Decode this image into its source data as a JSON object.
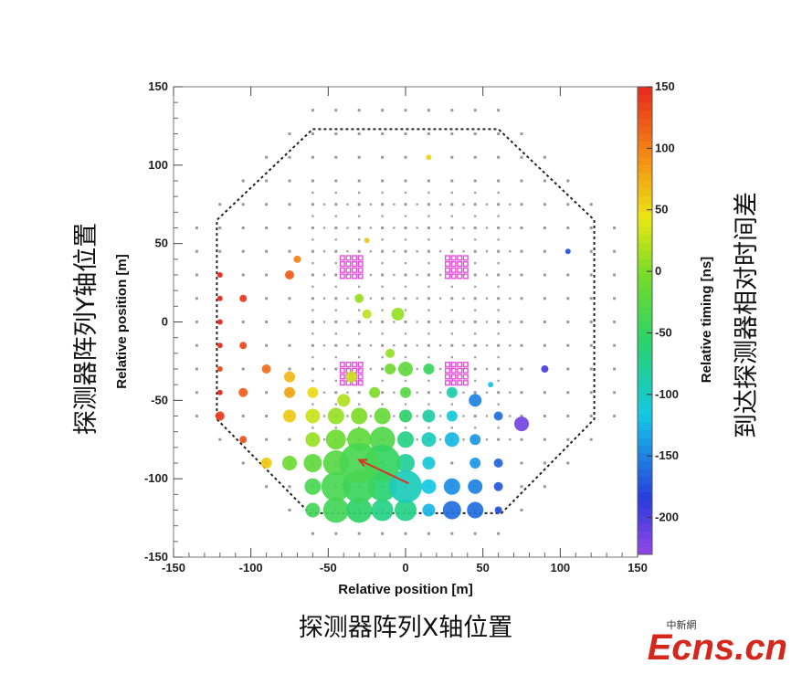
{
  "chart_data": {
    "type": "scatter",
    "xlabel": "Relative position [m]",
    "ylabel": "Relative position [m]",
    "xlim": [
      -150,
      150
    ],
    "ylim": [
      -150,
      150
    ],
    "x_ticks": [
      -150,
      -100,
      -50,
      0,
      50,
      100,
      150
    ],
    "y_ticks": [
      -150,
      -100,
      -50,
      0,
      50,
      100,
      150
    ],
    "colorbar": {
      "label": "Relative timing [ns]",
      "range": [
        -230,
        150
      ],
      "ticks": [
        150,
        100,
        50,
        0,
        -50,
        -100,
        -150,
        -200
      ]
    },
    "array_boundary": [
      [
        -60,
        123
      ],
      [
        60,
        123
      ],
      [
        122,
        65
      ],
      [
        122,
        -62
      ],
      [
        62,
        -122
      ],
      [
        -62,
        -122
      ],
      [
        -122,
        -62
      ],
      [
        -122,
        65
      ]
    ],
    "core_direction_arrow": {
      "from": [
        2,
        -103
      ],
      "to": [
        -30,
        -88
      ],
      "color": "#d9342b"
    },
    "triggered_detectors": [
      {
        "x": -120,
        "y": -60,
        "t": 140,
        "size": 5
      },
      {
        "x": -120,
        "y": -45,
        "t": 150,
        "size": 3
      },
      {
        "x": -120,
        "y": -30,
        "t": 130,
        "size": 3
      },
      {
        "x": -120,
        "y": -15,
        "t": 145,
        "size": 3
      },
      {
        "x": -120,
        "y": 0,
        "t": 150,
        "size": 3
      },
      {
        "x": -120,
        "y": 15,
        "t": 150,
        "size": 3
      },
      {
        "x": -120,
        "y": 30,
        "t": 150,
        "size": 3
      },
      {
        "x": -105,
        "y": -75,
        "t": 125,
        "size": 4
      },
      {
        "x": -105,
        "y": -45,
        "t": 120,
        "size": 5
      },
      {
        "x": -105,
        "y": -15,
        "t": 130,
        "size": 4
      },
      {
        "x": -105,
        "y": 15,
        "t": 140,
        "size": 4
      },
      {
        "x": -90,
        "y": -90,
        "t": 60,
        "size": 6
      },
      {
        "x": -90,
        "y": -30,
        "t": 110,
        "size": 5
      },
      {
        "x": -75,
        "y": 30,
        "t": 120,
        "size": 5
      },
      {
        "x": -75,
        "y": -60,
        "t": 60,
        "size": 7
      },
      {
        "x": -75,
        "y": -45,
        "t": 80,
        "size": 6
      },
      {
        "x": -75,
        "y": -35,
        "t": 70,
        "size": 6
      },
      {
        "x": -75,
        "y": -90,
        "t": -10,
        "size": 8
      },
      {
        "x": -70,
        "y": 40,
        "t": 100,
        "size": 4
      },
      {
        "x": -60,
        "y": -60,
        "t": 30,
        "size": 8
      },
      {
        "x": -60,
        "y": -75,
        "t": 10,
        "size": 8
      },
      {
        "x": -60,
        "y": -90,
        "t": -20,
        "size": 10
      },
      {
        "x": -60,
        "y": -105,
        "t": -35,
        "size": 9
      },
      {
        "x": -60,
        "y": -120,
        "t": -40,
        "size": 8
      },
      {
        "x": -60,
        "y": -45,
        "t": 50,
        "size": 6
      },
      {
        "x": -45,
        "y": -60,
        "t": 10,
        "size": 9
      },
      {
        "x": -45,
        "y": -75,
        "t": -10,
        "size": 11
      },
      {
        "x": -45,
        "y": -90,
        "t": -25,
        "size": 14
      },
      {
        "x": -45,
        "y": -105,
        "t": -35,
        "size": 16
      },
      {
        "x": -45,
        "y": -120,
        "t": -40,
        "size": 14
      },
      {
        "x": -40,
        "y": -50,
        "t": 20,
        "size": 7
      },
      {
        "x": -35,
        "y": -35,
        "t": 30,
        "size": 6
      },
      {
        "x": -30,
        "y": -60,
        "t": 0,
        "size": 9
      },
      {
        "x": -30,
        "y": -75,
        "t": -20,
        "size": 13
      },
      {
        "x": -30,
        "y": -90,
        "t": -35,
        "size": 22
      },
      {
        "x": -30,
        "y": -105,
        "t": -45,
        "size": 18
      },
      {
        "x": -30,
        "y": -120,
        "t": -55,
        "size": 14
      },
      {
        "x": -20,
        "y": -45,
        "t": 0,
        "size": 6
      },
      {
        "x": -15,
        "y": -60,
        "t": -15,
        "size": 9
      },
      {
        "x": -15,
        "y": -75,
        "t": -30,
        "size": 14
      },
      {
        "x": -15,
        "y": -90,
        "t": -50,
        "size": 20
      },
      {
        "x": -15,
        "y": -105,
        "t": -60,
        "size": 16
      },
      {
        "x": -15,
        "y": -120,
        "t": -70,
        "size": 12
      },
      {
        "x": -10,
        "y": -20,
        "t": 10,
        "size": 5
      },
      {
        "x": -10,
        "y": -30,
        "t": -10,
        "size": 6
      },
      {
        "x": -5,
        "y": 5,
        "t": 10,
        "size": 7
      },
      {
        "x": 0,
        "y": -30,
        "t": -20,
        "size": 8
      },
      {
        "x": 0,
        "y": -45,
        "t": -25,
        "size": 6
      },
      {
        "x": 0,
        "y": -60,
        "t": -55,
        "size": 7
      },
      {
        "x": 0,
        "y": -75,
        "t": -70,
        "size": 9
      },
      {
        "x": 0,
        "y": -90,
        "t": -80,
        "size": 10
      },
      {
        "x": 0,
        "y": -105,
        "t": -95,
        "size": 18
      },
      {
        "x": 0,
        "y": -120,
        "t": -70,
        "size": 12
      },
      {
        "x": 15,
        "y": -30,
        "t": -45,
        "size": 6
      },
      {
        "x": 15,
        "y": -60,
        "t": -85,
        "size": 7
      },
      {
        "x": 15,
        "y": -75,
        "t": -95,
        "size": 8
      },
      {
        "x": 15,
        "y": -90,
        "t": -110,
        "size": 7
      },
      {
        "x": 15,
        "y": -105,
        "t": -115,
        "size": 8
      },
      {
        "x": 15,
        "y": -120,
        "t": -125,
        "size": 7
      },
      {
        "x": 30,
        "y": -45,
        "t": -90,
        "size": 6
      },
      {
        "x": 30,
        "y": -60,
        "t": -110,
        "size": 6
      },
      {
        "x": 30,
        "y": -75,
        "t": -125,
        "size": 8
      },
      {
        "x": 30,
        "y": -105,
        "t": -145,
        "size": 9
      },
      {
        "x": 30,
        "y": -120,
        "t": -160,
        "size": 10
      },
      {
        "x": 45,
        "y": -50,
        "t": -150,
        "size": 7
      },
      {
        "x": 45,
        "y": -75,
        "t": -140,
        "size": 6
      },
      {
        "x": 45,
        "y": -90,
        "t": -140,
        "size": 6
      },
      {
        "x": 45,
        "y": -105,
        "t": -150,
        "size": 8
      },
      {
        "x": 45,
        "y": -120,
        "t": -160,
        "size": 9
      },
      {
        "x": 60,
        "y": -60,
        "t": -160,
        "size": 5
      },
      {
        "x": 60,
        "y": -90,
        "t": -165,
        "size": 5
      },
      {
        "x": 60,
        "y": -105,
        "t": -170,
        "size": 5
      },
      {
        "x": 60,
        "y": -120,
        "t": -175,
        "size": 4
      },
      {
        "x": 75,
        "y": -65,
        "t": -215,
        "size": 8
      },
      {
        "x": 90,
        "y": -30,
        "t": -200,
        "size": 4
      },
      {
        "x": 105,
        "y": 45,
        "t": -170,
        "size": 3
      },
      {
        "x": -25,
        "y": 52,
        "t": 60,
        "size": 3
      },
      {
        "x": 15,
        "y": 105,
        "t": 50,
        "size": 3
      },
      {
        "x": -30,
        "y": 15,
        "t": 10,
        "size": 5
      },
      {
        "x": -25,
        "y": 5,
        "t": 25,
        "size": 5
      },
      {
        "x": 55,
        "y": -40,
        "t": -120,
        "size": 3
      }
    ],
    "highlight_clusters": [
      {
        "x": -35,
        "y": 35
      },
      {
        "x": 33,
        "y": 35
      },
      {
        "x": -35,
        "y": -33
      },
      {
        "x": 33,
        "y": -33
      }
    ]
  },
  "annotations": {
    "x_axis_cn": "探测器阵列X轴位置",
    "y_axis_cn": "探测器阵列Y轴位置",
    "colorbar_cn": "到达探测器相对时间差"
  },
  "watermark": {
    "small": "中新網",
    "main": "Ecns.cn"
  }
}
